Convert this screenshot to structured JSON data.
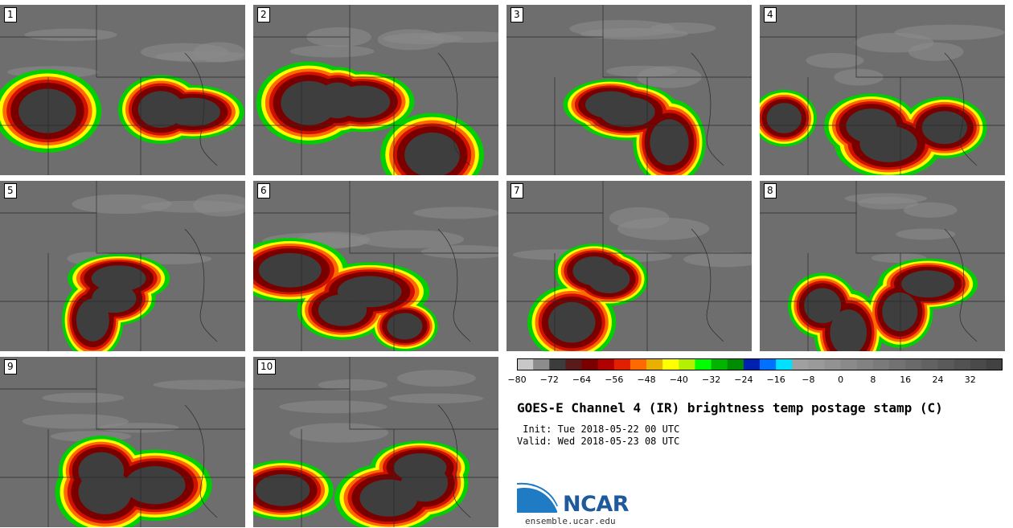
{
  "panels": [
    {
      "label": "1"
    },
    {
      "label": "2"
    },
    {
      "label": "3"
    },
    {
      "label": "4"
    },
    {
      "label": "5"
    },
    {
      "label": "6"
    },
    {
      "label": "7"
    },
    {
      "label": "8"
    },
    {
      "label": "9"
    },
    {
      "label": "10"
    }
  ],
  "chart_data": {
    "type": "heatmap",
    "title": "GOES-E Channel 4 (IR) brightness temp postage stamp (C)",
    "init": " Init: Tue 2018-05-22 00 UTC",
    "valid": "Valid: Wed 2018-05-23 08 UTC",
    "colorbar": {
      "range": [
        -80,
        40
      ],
      "tick_values": [
        -80,
        -72,
        -64,
        -56,
        -48,
        -40,
        -32,
        -24,
        -16,
        -8,
        0,
        8,
        16,
        24,
        32
      ],
      "tick_labels": [
        "−80",
        "−72",
        "−64",
        "−56",
        "−48",
        "−40",
        "−32",
        "−24",
        "−16",
        "−8",
        "0",
        "8",
        "16",
        "24",
        "32"
      ],
      "colors": [
        "#c8c8c8",
        "#8c8c8c",
        "#3c3c3c",
        "#5a1a1a",
        "#7a0000",
        "#b00000",
        "#e02000",
        "#ff6a00",
        "#e8b000",
        "#ffff00",
        "#b4f000",
        "#00ff00",
        "#00b400",
        "#008c00",
        "#0020b0",
        "#0070ff",
        "#00e0ff",
        "#a0a0a0",
        "#9a9a9a",
        "#929292",
        "#8a8a8a",
        "#828282",
        "#7a7a7a",
        "#727272",
        "#6a6a6a",
        "#626262",
        "#5a5a5a",
        "#525252",
        "#4a4a4a",
        "#424242"
      ]
    }
  },
  "branding": {
    "logo_text": "NCAR",
    "url": "ensemble.ucar.edu"
  }
}
